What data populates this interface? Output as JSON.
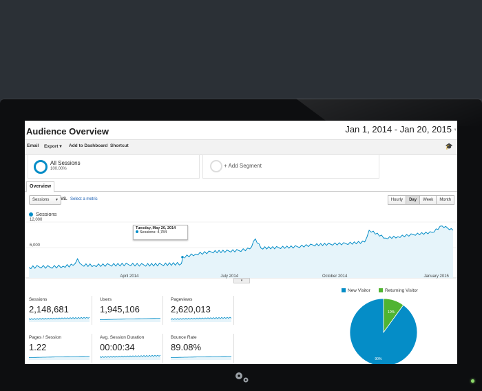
{
  "header": {
    "title": "Audience Overview",
    "date_range": "Jan 1, 2014 - Jan 20, 2015"
  },
  "toolbar": {
    "items": [
      "Email",
      "Export ▾",
      "Add to Dashboard",
      "Shortcut"
    ]
  },
  "segments": {
    "all_sessions": {
      "name": "All Sessions",
      "percent": "100.00%"
    },
    "add_segment": "+ Add Segment"
  },
  "tabs": {
    "overview": "Overview"
  },
  "controls": {
    "metric": "Sessions",
    "vs": "VS.",
    "select_metric": "Select a metric",
    "periods": [
      "Hourly",
      "Day",
      "Week",
      "Month"
    ],
    "active_period": "Day"
  },
  "chart_data": {
    "type": "area",
    "series": [
      {
        "name": "Sessions",
        "color": "#058dc7"
      }
    ],
    "y_ticks": [
      "12,000",
      "6,000"
    ],
    "x_ticks": [
      "April 2014",
      "July 2014",
      "October 2014",
      "January 2015"
    ],
    "x_range": [
      "2014-01-01",
      "2015-01-20"
    ],
    "y_range": [
      0,
      14000
    ],
    "points": [
      [
        "2014-01-01",
        2400
      ],
      [
        "2014-01-10",
        2600
      ],
      [
        "2014-01-20",
        2500
      ],
      [
        "2014-02-01",
        2700
      ],
      [
        "2014-02-10",
        2900
      ],
      [
        "2014-02-14",
        4400
      ],
      [
        "2014-02-18",
        3000
      ],
      [
        "2014-03-01",
        2900
      ],
      [
        "2014-03-15",
        3000
      ],
      [
        "2014-04-01",
        3100
      ],
      [
        "2014-04-15",
        3000
      ],
      [
        "2014-05-01",
        3100
      ],
      [
        "2014-05-19",
        3300
      ],
      [
        "2014-05-20",
        4784
      ],
      [
        "2014-06-01",
        5500
      ],
      [
        "2014-06-15",
        6000
      ],
      [
        "2014-07-01",
        6200
      ],
      [
        "2014-07-10",
        6300
      ],
      [
        "2014-07-20",
        6700
      ],
      [
        "2014-07-25",
        9000
      ],
      [
        "2014-07-30",
        6900
      ],
      [
        "2014-08-15",
        7000
      ],
      [
        "2014-09-01",
        7200
      ],
      [
        "2014-09-15",
        7600
      ],
      [
        "2014-10-01",
        7800
      ],
      [
        "2014-10-15",
        7900
      ],
      [
        "2014-11-01",
        8300
      ],
      [
        "2014-11-05",
        11000
      ],
      [
        "2014-11-20",
        9200
      ],
      [
        "2014-12-01",
        9500
      ],
      [
        "2014-12-15",
        10000
      ],
      [
        "2015-01-01",
        10500
      ],
      [
        "2015-01-10",
        12000
      ],
      [
        "2015-01-15",
        11500
      ],
      [
        "2015-01-20",
        11000
      ]
    ],
    "tooltip": {
      "date": "Tuesday, May 20, 2014",
      "label": "Sessions: 4,784"
    }
  },
  "metrics": [
    {
      "label": "Sessions",
      "value": "2,148,681"
    },
    {
      "label": "Users",
      "value": "1,945,106"
    },
    {
      "label": "Pageviews",
      "value": "2,620,013"
    },
    {
      "label": "Pages / Session",
      "value": "1.22"
    },
    {
      "label": "Avg. Session Duration",
      "value": "00:00:34"
    },
    {
      "label": "Bounce Rate",
      "value": "89.08%"
    }
  ],
  "pie": {
    "slices": [
      {
        "name": "New Visitor",
        "percent": 90,
        "label": "90%",
        "color": "#058dc7"
      },
      {
        "name": "Returning Visitor",
        "percent": 10,
        "label": "10%",
        "color": "#50b432"
      }
    ]
  },
  "colors": {
    "accent": "#058dc7",
    "green": "#50b432",
    "bezel": "#0d0e10",
    "backdrop": "#2b3036"
  }
}
